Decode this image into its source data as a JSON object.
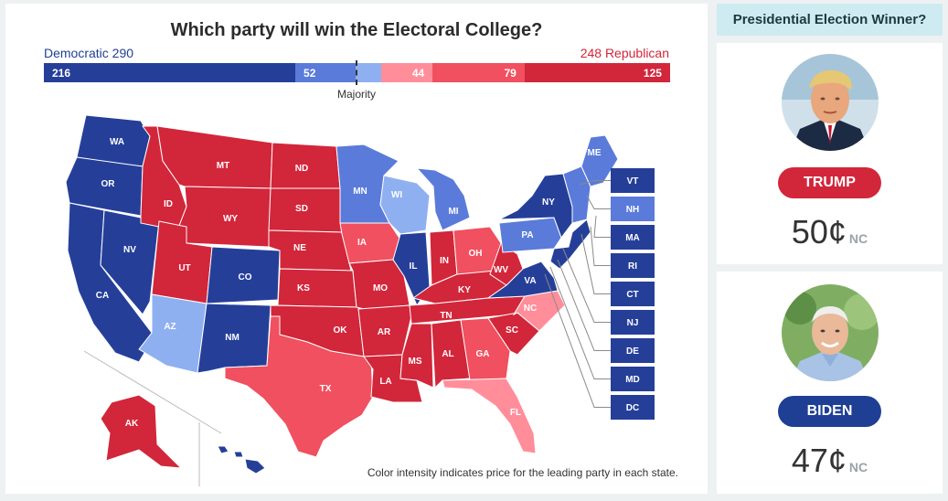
{
  "map": {
    "title": "Which party will win the Electoral College?",
    "democratic_total": "Democratic 290",
    "republican_total": "248 Republican",
    "majority_label": "Majority",
    "footnote": "Color intensity indicates price for the leading party in each state.",
    "colors": {
      "dem_strong": "#253f99",
      "dem_lean": "#5a7bd9",
      "dem_tilt": "#8fb0f0",
      "rep_tilt": "#ff8e9a",
      "rep_lean": "#f0505f",
      "rep_strong": "#d2263a"
    },
    "bar": [
      {
        "label": "216",
        "value": 216,
        "color": "#253f99"
      },
      {
        "label": "52",
        "value": 52,
        "color": "#5a7bd9"
      },
      {
        "label": "",
        "value": 22,
        "color": "#8fb0f0"
      },
      {
        "label": "44",
        "value": 44,
        "color": "#ff8e9a"
      },
      {
        "label": "79",
        "value": 79,
        "color": "#f0505f"
      },
      {
        "label": "125",
        "value": 125,
        "color": "#d2263a"
      }
    ],
    "states": {
      "WA": "WA",
      "OR": "OR",
      "CA": "CA",
      "NV": "NV",
      "ID": "ID",
      "MT": "MT",
      "WY": "WY",
      "UT": "UT",
      "AZ": "AZ",
      "CO": "CO",
      "NM": "NM",
      "ND": "ND",
      "SD": "SD",
      "NE": "NE",
      "KS": "KS",
      "OK": "OK",
      "TX": "TX",
      "MN": "MN",
      "IA": "IA",
      "MO": "MO",
      "AR": "AR",
      "LA": "LA",
      "WI": "WI",
      "IL": "IL",
      "MI": "MI",
      "IN": "IN",
      "OH": "OH",
      "KY": "KY",
      "TN": "TN",
      "MS": "MS",
      "AL": "AL",
      "GA": "GA",
      "FL": "FL",
      "SC": "SC",
      "NC": "NC",
      "VA": "VA",
      "WV": "WV",
      "PA": "PA",
      "NY": "NY",
      "ME": "ME",
      "AK": "AK"
    },
    "small_states": [
      "VT",
      "NH",
      "MA",
      "RI",
      "CT",
      "NJ",
      "DE",
      "MD",
      "DC"
    ]
  },
  "sidebar": {
    "header": "Presidential Election Winner?",
    "candidates": [
      {
        "name": "TRUMP",
        "price": "50¢",
        "badge": "NC"
      },
      {
        "name": "BIDEN",
        "price": "47¢",
        "badge": "NC"
      }
    ]
  }
}
